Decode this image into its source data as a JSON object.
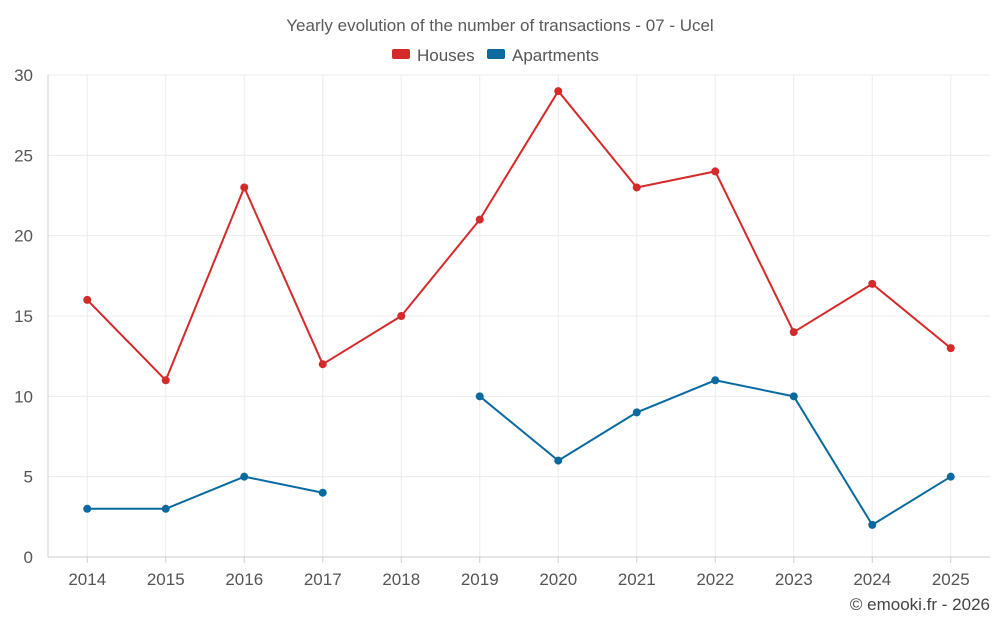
{
  "chart_data": {
    "type": "line",
    "title": "Yearly evolution of the number of transactions - 07 - Ucel",
    "categories": [
      "2014",
      "2015",
      "2016",
      "2017",
      "2018",
      "2019",
      "2020",
      "2021",
      "2022",
      "2023",
      "2024",
      "2025"
    ],
    "series": [
      {
        "name": "Houses",
        "color": "#d42a2a",
        "values": [
          16,
          11,
          23,
          12,
          15,
          21,
          29,
          23,
          24,
          14,
          17,
          13
        ]
      },
      {
        "name": "Apartments",
        "color": "#0a6aa0",
        "values": [
          3,
          3,
          5,
          4,
          null,
          10,
          6,
          9,
          11,
          10,
          2,
          5
        ]
      }
    ],
    "ylim": [
      0,
      30
    ],
    "yticks": [
      0,
      5,
      10,
      15,
      20,
      25,
      30
    ],
    "xlabel": "",
    "ylabel": "",
    "grid": true,
    "legend_position": "top-center"
  },
  "credit": "© emooki.fr - 2026"
}
